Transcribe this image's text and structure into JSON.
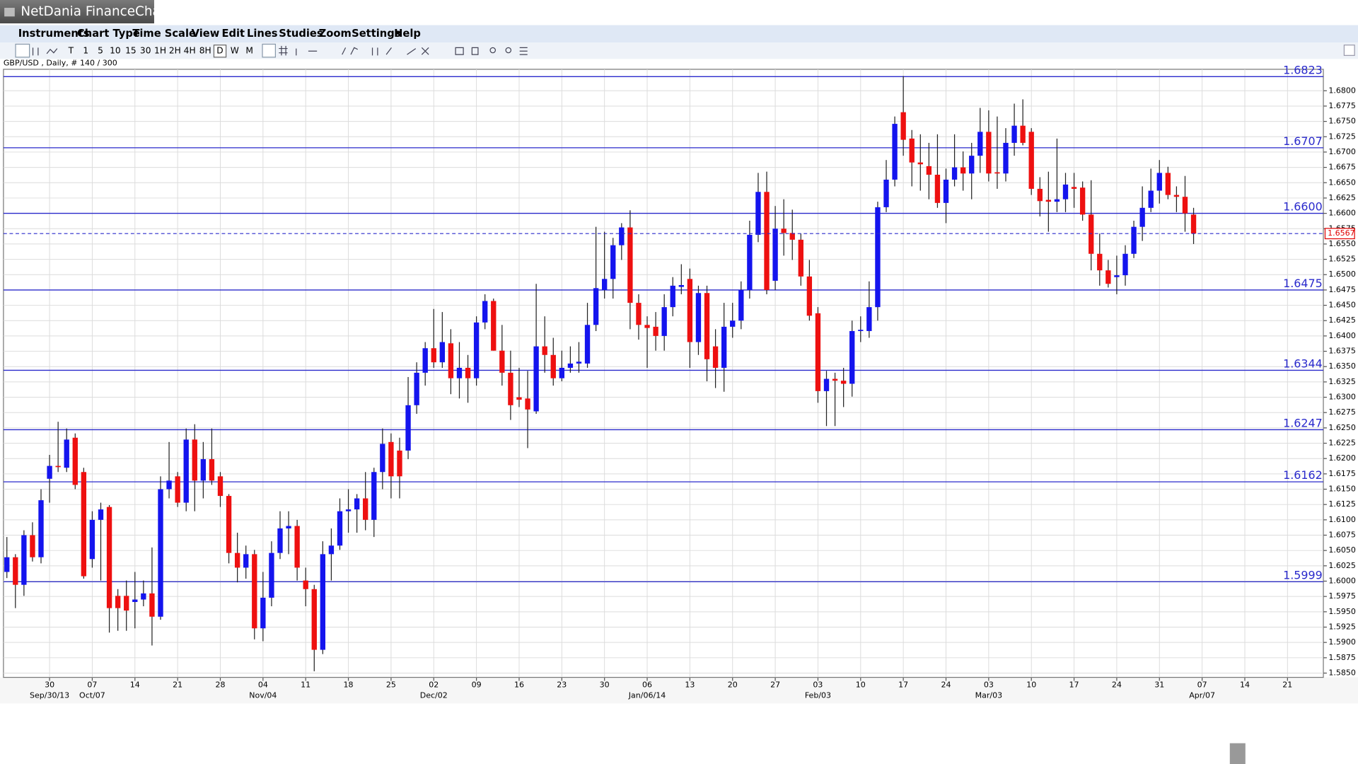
{
  "app": {
    "title": "NetDania FinanceChart"
  },
  "menu": [
    "Instruments",
    "Chart Type",
    "Time Scale",
    "View",
    "Edit",
    "Lines",
    "Studies",
    "Zoom",
    "Settings",
    "Help"
  ],
  "toolbar": {
    "timescales": [
      "T",
      "1",
      "5",
      "10",
      "15",
      "30",
      "1H",
      "2H",
      "4H",
      "8H",
      "D",
      "W",
      "M"
    ]
  },
  "chart_data": {
    "type": "candlestick",
    "title": "GBP/USD , Daily, # 140 / 300",
    "up_color": "#1414ee",
    "down_color": "#ee1010",
    "level_color": "#2a2acc",
    "last_color": "#e00000",
    "grid": true,
    "xlim": [
      -0.4,
      154.2
    ],
    "ylim": [
      1.5843,
      1.6835
    ],
    "open": [
      1.6015,
      1.6039,
      1.5994,
      1.6075,
      1.6039,
      1.6167,
      1.6188,
      1.6185,
      1.6234,
      1.6178,
      1.6036,
      1.61,
      1.6121,
      1.5976,
      1.5976,
      1.5966,
      1.597,
      1.598,
      1.5942,
      1.615,
      1.6171,
      1.6128,
      1.6231,
      1.6164,
      1.6199,
      1.6171,
      1.6139,
      1.6046,
      1.6022,
      1.6044,
      1.5923,
      1.5973,
      1.6046,
      1.6086,
      1.609,
      1.6001,
      1.5987,
      1.5888,
      1.6044,
      1.6058,
      1.6114,
      1.6117,
      1.6135,
      1.61,
      1.6178,
      1.6227,
      1.6213,
      1.6213,
      1.6287,
      1.634,
      1.638,
      1.6357,
      1.6388,
      1.6331,
      1.6348,
      1.6331,
      1.6422,
      1.6457,
      1.6376,
      1.634,
      1.63,
      1.6298,
      1.6277,
      1.6383,
      1.6369,
      1.6331,
      1.6348,
      1.6355,
      1.6355,
      1.6418,
      1.6475,
      1.6493,
      1.6548,
      1.6577,
      1.6454,
      1.6418,
      1.6415,
      1.64,
      1.6447,
      1.648,
      1.6493,
      1.639,
      1.647,
      1.6383,
      1.6348,
      1.6415,
      1.6425,
      1.6475,
      1.6565,
      1.6635,
      1.649,
      1.6575,
      1.6568,
      1.6557,
      1.6497,
      1.6437,
      1.631,
      1.633,
      1.6327,
      1.6322,
      1.6408,
      1.6408,
      1.6447,
      1.661,
      1.6655,
      1.6765,
      1.6722,
      1.6683,
      1.6677,
      1.6663,
      1.6617,
      1.6655,
      1.6675,
      1.6665,
      1.6694,
      1.6733,
      1.6667,
      1.6665,
      1.6715,
      1.6743,
      1.6733,
      1.664,
      1.6622,
      1.6619,
      1.6623,
      1.6643,
      1.6642,
      1.6598,
      1.6534,
      1.6507,
      1.6496,
      1.6499,
      1.6534,
      1.6578,
      1.6609,
      1.6637,
      1.6666,
      1.663,
      1.6627,
      1.6598
    ],
    "high": [
      1.6072,
      1.6044,
      1.6083,
      1.6096,
      1.615,
      1.6206,
      1.626,
      1.6249,
      1.6241,
      1.6185,
      1.6114,
      1.6128,
      1.6124,
      1.5987,
      1.6001,
      1.6015,
      1.6001,
      1.6055,
      1.6171,
      1.6227,
      1.6178,
      1.6249,
      1.6256,
      1.6227,
      1.6249,
      1.6178,
      1.6142,
      1.6079,
      1.6058,
      1.6051,
      1.6015,
      1.6065,
      1.6114,
      1.6114,
      1.61,
      1.6022,
      1.5994,
      1.6065,
      1.6086,
      1.6135,
      1.615,
      1.6142,
      1.6178,
      1.6185,
      1.6249,
      1.6241,
      1.6234,
      1.6333,
      1.6357,
      1.639,
      1.6444,
      1.6439,
      1.6411,
      1.639,
      1.6369,
      1.6432,
      1.6468,
      1.6461,
      1.6418,
      1.6376,
      1.6348,
      1.6343,
      1.6485,
      1.6432,
      1.6397,
      1.6376,
      1.6383,
      1.639,
      1.6454,
      1.6578,
      1.657,
      1.656,
      1.6584,
      1.6605,
      1.6468,
      1.6432,
      1.6439,
      1.6468,
      1.6496,
      1.6517,
      1.651,
      1.6482,
      1.6482,
      1.6411,
      1.6454,
      1.6454,
      1.6489,
      1.6588,
      1.6666,
      1.6668,
      1.6612,
      1.6623,
      1.6606,
      1.6567,
      1.6524,
      1.6447,
      1.6343,
      1.634,
      1.6348,
      1.6425,
      1.6432,
      1.6489,
      1.6619,
      1.6687,
      1.6758,
      1.6824,
      1.6736,
      1.6729,
      1.6715,
      1.6729,
      1.6673,
      1.6729,
      1.6701,
      1.6715,
      1.6772,
      1.6768,
      1.6758,
      1.6739,
      1.6779,
      1.6786,
      1.6739,
      1.6659,
      1.6668,
      1.6722,
      1.6666,
      1.6666,
      1.6652,
      1.6654,
      1.6567,
      1.6524,
      1.6531,
      1.6548,
      1.6588,
      1.6644,
      1.6673,
      1.6687,
      1.6676,
      1.6644,
      1.6661,
      1.6609
    ],
    "low": [
      1.6005,
      1.5956,
      1.5976,
      1.6032,
      1.6029,
      1.6128,
      1.6178,
      1.6178,
      1.615,
      1.6004,
      1.6022,
      1.6001,
      1.5916,
      1.5919,
      1.5919,
      1.5923,
      1.5959,
      1.5895,
      1.5937,
      1.6135,
      1.6121,
      1.6114,
      1.6114,
      1.6135,
      1.6157,
      1.6121,
      1.6029,
      1.5998,
      1.6004,
      1.5905,
      1.5902,
      1.5959,
      1.6036,
      1.6044,
      1.6001,
      1.5959,
      1.5853,
      1.5881,
      1.6001,
      1.6051,
      1.6079,
      1.6079,
      1.6083,
      1.6072,
      1.615,
      1.6135,
      1.6135,
      1.6199,
      1.6273,
      1.6319,
      1.6348,
      1.6348,
      1.6305,
      1.6298,
      1.6291,
      1.6319,
      1.6411,
      1.6376,
      1.6319,
      1.6263,
      1.6284,
      1.6217,
      1.6273,
      1.634,
      1.6319,
      1.6326,
      1.634,
      1.634,
      1.6348,
      1.6408,
      1.6461,
      1.6461,
      1.6524,
      1.6411,
      1.6394,
      1.6348,
      1.6376,
      1.6376,
      1.6432,
      1.6468,
      1.6348,
      1.6369,
      1.6326,
      1.6315,
      1.6309,
      1.6397,
      1.6411,
      1.6461,
      1.6553,
      1.6468,
      1.6475,
      1.6531,
      1.6524,
      1.6482,
      1.6425,
      1.6291,
      1.6253,
      1.6253,
      1.6284,
      1.6301,
      1.639,
      1.6397,
      1.6425,
      1.6602,
      1.6644,
      1.6694,
      1.6644,
      1.6637,
      1.6623,
      1.6609,
      1.6584,
      1.6644,
      1.6637,
      1.6623,
      1.6666,
      1.6652,
      1.664,
      1.6652,
      1.6694,
      1.6711,
      1.663,
      1.6595,
      1.657,
      1.6602,
      1.6602,
      1.6609,
      1.6588,
      1.6507,
      1.6482,
      1.6479,
      1.6468,
      1.6482,
      1.6527,
      1.6555,
      1.6602,
      1.6616,
      1.6623,
      1.6602,
      1.657,
      1.655
    ],
    "close": [
      1.6039,
      1.5994,
      1.6075,
      1.6039,
      1.6132,
      1.6188,
      1.6186,
      1.6231,
      1.6157,
      1.6008,
      1.61,
      1.6117,
      1.5956,
      1.5956,
      1.5952,
      1.597,
      1.598,
      1.5942,
      1.615,
      1.6164,
      1.6128,
      1.6231,
      1.6164,
      1.6199,
      1.6164,
      1.6139,
      1.6046,
      1.6022,
      1.6044,
      1.5923,
      1.5973,
      1.6046,
      1.6086,
      1.609,
      1.6022,
      1.5987,
      1.5888,
      1.6044,
      1.6058,
      1.6114,
      1.6117,
      1.6135,
      1.61,
      1.6178,
      1.6224,
      1.6171,
      1.6171,
      1.6287,
      1.634,
      1.638,
      1.6357,
      1.639,
      1.6331,
      1.6348,
      1.6331,
      1.6422,
      1.6457,
      1.6376,
      1.634,
      1.6287,
      1.6296,
      1.628,
      1.6383,
      1.6369,
      1.6331,
      1.6348,
      1.6355,
      1.6358,
      1.6418,
      1.6478,
      1.6493,
      1.6548,
      1.6577,
      1.6454,
      1.6418,
      1.6413,
      1.64,
      1.6447,
      1.6482,
      1.6483,
      1.639,
      1.647,
      1.6362,
      1.6348,
      1.6415,
      1.6425,
      1.6475,
      1.6565,
      1.6635,
      1.6475,
      1.6575,
      1.6568,
      1.6557,
      1.6497,
      1.6433,
      1.631,
      1.633,
      1.6327,
      1.6322,
      1.6408,
      1.641,
      1.6447,
      1.661,
      1.6655,
      1.6746,
      1.672,
      1.6683,
      1.668,
      1.6663,
      1.6617,
      1.6655,
      1.6675,
      1.6665,
      1.6694,
      1.6733,
      1.6665,
      1.6665,
      1.6715,
      1.6743,
      1.6715,
      1.664,
      1.662,
      1.6619,
      1.6623,
      1.6647,
      1.664,
      1.6598,
      1.6534,
      1.6507,
      1.6485,
      1.6499,
      1.6534,
      1.6578,
      1.6609,
      1.6637,
      1.6666,
      1.663,
      1.6627,
      1.66,
      1.6567
    ],
    "xticks": [
      {
        "value": 5,
        "label": "30"
      },
      {
        "value": 10,
        "label": "07"
      },
      {
        "value": 15,
        "label": "14"
      },
      {
        "value": 20,
        "label": "21"
      },
      {
        "value": 25,
        "label": "28"
      },
      {
        "value": 30,
        "label": "04"
      },
      {
        "value": 35,
        "label": "11"
      },
      {
        "value": 40,
        "label": "18"
      },
      {
        "value": 45,
        "label": "25"
      },
      {
        "value": 50,
        "label": "02"
      },
      {
        "value": 55,
        "label": "09"
      },
      {
        "value": 60,
        "label": "16"
      },
      {
        "value": 65,
        "label": "23"
      },
      {
        "value": 70,
        "label": "30"
      },
      {
        "value": 75,
        "label": "06"
      },
      {
        "value": 80,
        "label": "13"
      },
      {
        "value": 85,
        "label": "20"
      },
      {
        "value": 90,
        "label": "27"
      },
      {
        "value": 95,
        "label": "03"
      },
      {
        "value": 100,
        "label": "10"
      },
      {
        "value": 105,
        "label": "17"
      },
      {
        "value": 110,
        "label": "24"
      },
      {
        "value": 115,
        "label": "03"
      },
      {
        "value": 120,
        "label": "10"
      },
      {
        "value": 125,
        "label": "17"
      },
      {
        "value": 130,
        "label": "24"
      },
      {
        "value": 135,
        "label": "31"
      },
      {
        "value": 140,
        "label": "07"
      },
      {
        "value": 145,
        "label": "14"
      },
      {
        "value": 150,
        "label": "21"
      }
    ],
    "xticks2": [
      {
        "value": 5,
        "label": "Sep/30/13"
      },
      {
        "value": 10,
        "label": "Oct/07"
      },
      {
        "value": 30,
        "label": "Nov/04"
      },
      {
        "value": 50,
        "label": "Dec/02"
      },
      {
        "value": 75,
        "label": "Jan/06/14"
      },
      {
        "value": 95,
        "label": "Feb/03"
      },
      {
        "value": 115,
        "label": "Mar/03"
      },
      {
        "value": 140,
        "label": "Apr/07"
      }
    ],
    "yticks": [
      {
        "value": 1.585,
        "label": "1.5850"
      },
      {
        "value": 1.5875,
        "label": "1.5875"
      },
      {
        "value": 1.59,
        "label": "1.5900"
      },
      {
        "value": 1.5925,
        "label": "1.5925"
      },
      {
        "value": 1.595,
        "label": "1.5950"
      },
      {
        "value": 1.5975,
        "label": "1.5975"
      },
      {
        "value": 1.6,
        "label": "1.6000"
      },
      {
        "value": 1.6025,
        "label": "1.6025"
      },
      {
        "value": 1.605,
        "label": "1.6050"
      },
      {
        "value": 1.6075,
        "label": "1.6075"
      },
      {
        "value": 1.61,
        "label": "1.6100"
      },
      {
        "value": 1.6125,
        "label": "1.6125"
      },
      {
        "value": 1.615,
        "label": "1.6150"
      },
      {
        "value": 1.6175,
        "label": "1.6175"
      },
      {
        "value": 1.62,
        "label": "1.6200"
      },
      {
        "value": 1.6225,
        "label": "1.6225"
      },
      {
        "value": 1.625,
        "label": "1.6250"
      },
      {
        "value": 1.6275,
        "label": "1.6275"
      },
      {
        "value": 1.63,
        "label": "1.6300"
      },
      {
        "value": 1.6325,
        "label": "1.6325"
      },
      {
        "value": 1.635,
        "label": "1.6350"
      },
      {
        "value": 1.6375,
        "label": "1.6375"
      },
      {
        "value": 1.64,
        "label": "1.6400"
      },
      {
        "value": 1.6425,
        "label": "1.6425"
      },
      {
        "value": 1.645,
        "label": "1.6450"
      },
      {
        "value": 1.6475,
        "label": "1.6475"
      },
      {
        "value": 1.65,
        "label": "1.6500"
      },
      {
        "value": 1.6525,
        "label": "1.6525"
      },
      {
        "value": 1.655,
        "label": "1.6550"
      },
      {
        "value": 1.6575,
        "label": "1.6575"
      },
      {
        "value": 1.66,
        "label": "1.6600"
      },
      {
        "value": 1.6625,
        "label": "1.6625"
      },
      {
        "value": 1.665,
        "label": "1.6650"
      },
      {
        "value": 1.6675,
        "label": "1.6675"
      },
      {
        "value": 1.67,
        "label": "1.6700"
      },
      {
        "value": 1.6725,
        "label": "1.6725"
      },
      {
        "value": 1.675,
        "label": "1.6750"
      },
      {
        "value": 1.6775,
        "label": "1.6775"
      },
      {
        "value": 1.68,
        "label": "1.6800"
      }
    ],
    "levels": [
      {
        "value": 1.6823,
        "label": "1.6823"
      },
      {
        "value": 1.6707,
        "label": "1.6707"
      },
      {
        "value": 1.66,
        "label": "1.6600"
      },
      {
        "value": 1.6475,
        "label": "1.6475"
      },
      {
        "value": 1.6344,
        "label": "1.6344"
      },
      {
        "value": 1.6247,
        "label": "1.6247"
      },
      {
        "value": 1.6162,
        "label": "1.6162"
      },
      {
        "value": 1.5999,
        "label": "1.5999"
      }
    ],
    "last_price": {
      "value": 1.6567,
      "label": "1.6567"
    }
  }
}
